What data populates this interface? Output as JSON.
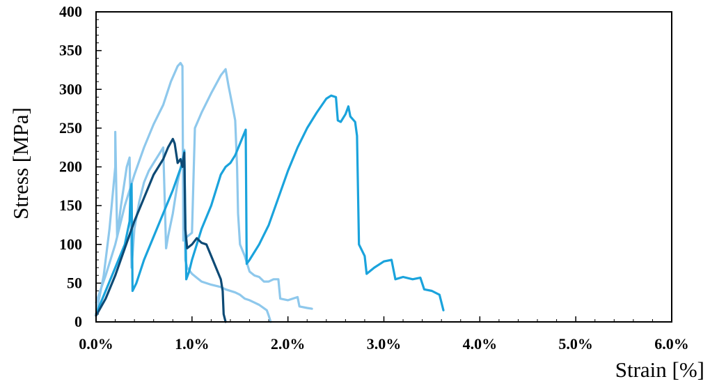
{
  "chart_data": {
    "type": "line",
    "title": "",
    "xlabel": "Strain [%]",
    "ylabel": "Stress [MPa]",
    "xlim": [
      0,
      6
    ],
    "ylim": [
      0,
      400
    ],
    "x_ticks": [
      0,
      1,
      2,
      3,
      4,
      5,
      6
    ],
    "x_tick_labels": [
      "0.0%",
      "1.0%",
      "2.0%",
      "3.0%",
      "4.0%",
      "5.0%",
      "6.0%"
    ],
    "y_ticks": [
      0,
      50,
      100,
      150,
      200,
      250,
      300,
      350,
      400
    ],
    "y_tick_labels": [
      "0",
      "50",
      "100",
      "150",
      "200",
      "250",
      "300",
      "350",
      "400"
    ],
    "grid": false,
    "legend": "none",
    "series": [
      {
        "color": "#8ec8ec",
        "points": [
          [
            0.0,
            10
          ],
          [
            0.08,
            60
          ],
          [
            0.14,
            120
          ],
          [
            0.2,
            200
          ],
          [
            0.2,
            245
          ],
          [
            0.22,
            110
          ],
          [
            0.26,
            150
          ],
          [
            0.32,
            200
          ],
          [
            0.35,
            212
          ],
          [
            0.37,
            70
          ],
          [
            0.4,
            120
          ],
          [
            0.45,
            155
          ],
          [
            0.5,
            180
          ],
          [
            0.55,
            195
          ],
          [
            0.6,
            205
          ],
          [
            0.65,
            215
          ],
          [
            0.7,
            225
          ],
          [
            0.73,
            95
          ],
          [
            0.75,
            110
          ],
          [
            0.8,
            140
          ],
          [
            0.85,
            180
          ],
          [
            0.92,
            222
          ],
          [
            0.93,
            80
          ],
          [
            0.95,
            70
          ],
          [
            1.0,
            62
          ],
          [
            1.05,
            57
          ],
          [
            1.1,
            52
          ],
          [
            1.2,
            48
          ],
          [
            1.3,
            45
          ],
          [
            1.35,
            42
          ],
          [
            1.45,
            38
          ],
          [
            1.5,
            35
          ],
          [
            1.55,
            30
          ],
          [
            1.6,
            28
          ],
          [
            1.65,
            25
          ],
          [
            1.7,
            22
          ],
          [
            1.78,
            15
          ],
          [
            1.8,
            8
          ],
          [
            1.82,
            0
          ]
        ]
      },
      {
        "color": "#8ec8ec",
        "points": [
          [
            0.0,
            25
          ],
          [
            0.1,
            60
          ],
          [
            0.2,
            100
          ],
          [
            0.3,
            150
          ],
          [
            0.4,
            190
          ],
          [
            0.5,
            225
          ],
          [
            0.6,
            255
          ],
          [
            0.7,
            280
          ],
          [
            0.78,
            310
          ],
          [
            0.85,
            330
          ],
          [
            0.88,
            334
          ],
          [
            0.9,
            330
          ],
          [
            0.91,
            105
          ],
          [
            0.95,
            110
          ],
          [
            1.0,
            115
          ],
          [
            1.03,
            250
          ],
          [
            1.1,
            270
          ],
          [
            1.2,
            295
          ],
          [
            1.3,
            318
          ],
          [
            1.35,
            326
          ],
          [
            1.38,
            305
          ],
          [
            1.42,
            280
          ],
          [
            1.45,
            260
          ],
          [
            1.47,
            200
          ],
          [
            1.48,
            140
          ],
          [
            1.5,
            100
          ],
          [
            1.55,
            85
          ],
          [
            1.6,
            65
          ],
          [
            1.65,
            60
          ],
          [
            1.7,
            58
          ],
          [
            1.75,
            52
          ],
          [
            1.8,
            52
          ],
          [
            1.85,
            55
          ],
          [
            1.9,
            55
          ],
          [
            1.92,
            30
          ],
          [
            2.0,
            28
          ],
          [
            2.05,
            30
          ],
          [
            2.1,
            32
          ],
          [
            2.12,
            20
          ],
          [
            2.2,
            18
          ],
          [
            2.25,
            17
          ]
        ]
      },
      {
        "color": "#1aa3dc",
        "points": [
          [
            0.0,
            10
          ],
          [
            0.1,
            40
          ],
          [
            0.2,
            70
          ],
          [
            0.3,
            100
          ],
          [
            0.35,
            130
          ],
          [
            0.36,
            170
          ],
          [
            0.37,
            178
          ],
          [
            0.38,
            40
          ],
          [
            0.42,
            50
          ],
          [
            0.5,
            80
          ],
          [
            0.6,
            110
          ],
          [
            0.7,
            140
          ],
          [
            0.8,
            170
          ],
          [
            0.9,
            205
          ],
          [
            0.92,
            220
          ],
          [
            0.94,
            55
          ],
          [
            0.97,
            65
          ],
          [
            1.0,
            80
          ],
          [
            1.05,
            100
          ],
          [
            1.1,
            120
          ],
          [
            1.2,
            150
          ],
          [
            1.25,
            170
          ],
          [
            1.3,
            190
          ],
          [
            1.35,
            200
          ],
          [
            1.4,
            205
          ],
          [
            1.45,
            215
          ],
          [
            1.5,
            230
          ],
          [
            1.56,
            248
          ],
          [
            1.57,
            75
          ],
          [
            1.6,
            80
          ],
          [
            1.7,
            100
          ],
          [
            1.8,
            125
          ],
          [
            1.9,
            160
          ],
          [
            2.0,
            195
          ],
          [
            2.1,
            225
          ],
          [
            2.2,
            250
          ],
          [
            2.3,
            270
          ],
          [
            2.4,
            288
          ],
          [
            2.45,
            292
          ],
          [
            2.5,
            290
          ],
          [
            2.52,
            260
          ],
          [
            2.55,
            258
          ],
          [
            2.6,
            268
          ],
          [
            2.63,
            278
          ],
          [
            2.65,
            265
          ],
          [
            2.7,
            258
          ],
          [
            2.72,
            240
          ],
          [
            2.74,
            100
          ],
          [
            2.76,
            95
          ],
          [
            2.8,
            85
          ],
          [
            2.82,
            62
          ],
          [
            2.9,
            70
          ],
          [
            3.0,
            78
          ],
          [
            3.08,
            80
          ],
          [
            3.12,
            55
          ],
          [
            3.2,
            58
          ],
          [
            3.3,
            55
          ],
          [
            3.38,
            57
          ],
          [
            3.42,
            42
          ],
          [
            3.5,
            40
          ],
          [
            3.58,
            35
          ],
          [
            3.6,
            25
          ],
          [
            3.62,
            15
          ]
        ]
      },
      {
        "color": "#0d4a75",
        "points": [
          [
            0.0,
            8
          ],
          [
            0.1,
            30
          ],
          [
            0.2,
            60
          ],
          [
            0.3,
            95
          ],
          [
            0.4,
            130
          ],
          [
            0.5,
            160
          ],
          [
            0.6,
            190
          ],
          [
            0.65,
            200
          ],
          [
            0.7,
            210
          ],
          [
            0.75,
            225
          ],
          [
            0.8,
            236
          ],
          [
            0.82,
            230
          ],
          [
            0.85,
            205
          ],
          [
            0.88,
            210
          ],
          [
            0.9,
            200
          ],
          [
            0.92,
            218
          ],
          [
            0.93,
            120
          ],
          [
            0.95,
            95
          ],
          [
            1.0,
            100
          ],
          [
            1.05,
            108
          ],
          [
            1.1,
            102
          ],
          [
            1.15,
            100
          ],
          [
            1.2,
            85
          ],
          [
            1.25,
            70
          ],
          [
            1.3,
            55
          ],
          [
            1.32,
            40
          ],
          [
            1.33,
            10
          ],
          [
            1.35,
            0
          ]
        ]
      }
    ]
  }
}
